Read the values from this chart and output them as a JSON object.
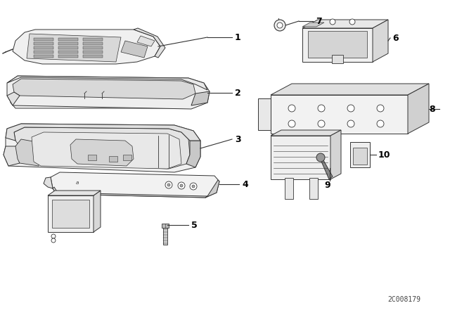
{
  "bg_color": "#ffffff",
  "line_color": "#333333",
  "watermark": "2C008179",
  "fig_width": 6.4,
  "fig_height": 4.48,
  "dpi": 100
}
